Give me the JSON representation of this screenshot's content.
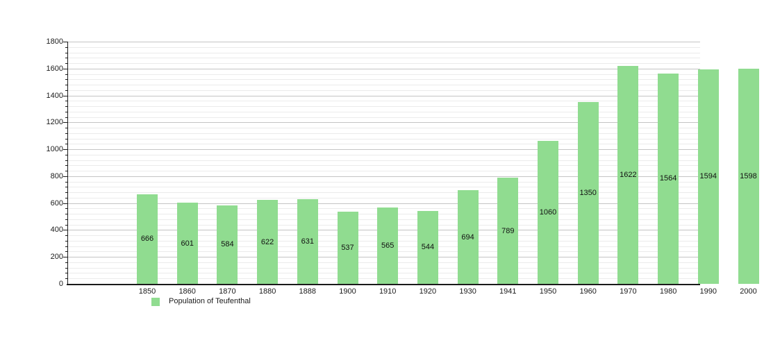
{
  "chart_data": {
    "type": "bar",
    "categories": [
      "1850",
      "1860",
      "1870",
      "1880",
      "1888",
      "1900",
      "1910",
      "1920",
      "1930",
      "1941",
      "1950",
      "1960",
      "1970",
      "1980",
      "1990",
      "2000"
    ],
    "values": [
      666,
      601,
      584,
      622,
      631,
      537,
      565,
      544,
      694,
      789,
      1060,
      1350,
      1622,
      1564,
      1594,
      1598
    ],
    "title": "",
    "xlabel": "",
    "ylabel": "",
    "ylim": [
      0,
      1800
    ],
    "y_major_step": 200,
    "y_minor_step": 40,
    "y_tick_labels": [
      "0",
      "200",
      "400",
      "600",
      "800",
      "1000",
      "1200",
      "1400",
      "1600",
      "1800"
    ],
    "grid": true,
    "bar_labels_inside": true,
    "legend": {
      "label": "Population of Teufenthal",
      "position": "bottom-left"
    },
    "colors": {
      "bar": "#90dc90",
      "value_label": "#111111",
      "grid_major": "#c4c4c4",
      "grid_minor": "#ebebeb",
      "axis": "#1a1a1a",
      "background": "#ffffff"
    }
  }
}
